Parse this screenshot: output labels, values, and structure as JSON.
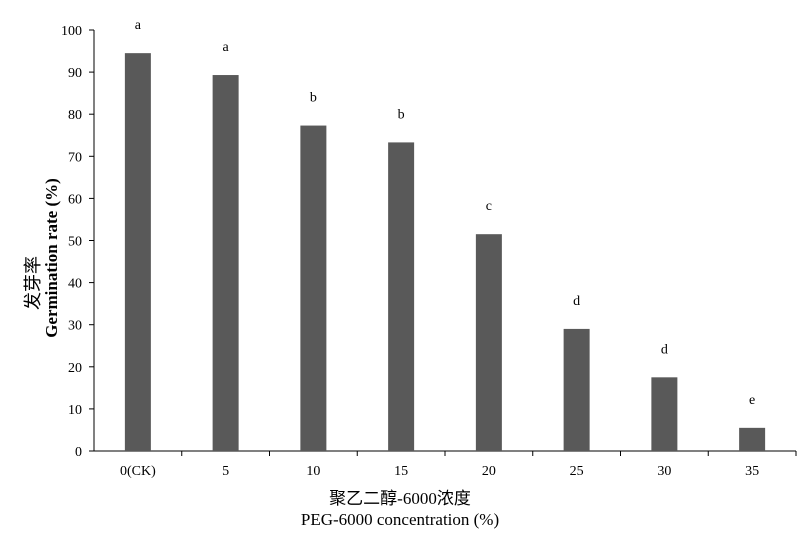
{
  "chart_data": {
    "type": "bar",
    "categories": [
      "0(CK)",
      "5",
      "10",
      "15",
      "20",
      "25",
      "30",
      "35"
    ],
    "values": [
      94.5,
      89.3,
      77.3,
      73.3,
      51.5,
      29.0,
      17.5,
      5.5
    ],
    "letters": [
      "a",
      "a",
      "b",
      "b",
      "c",
      "d",
      "d",
      "e"
    ],
    "ylim": [
      0,
      100
    ],
    "yticks": [
      0,
      10,
      20,
      30,
      40,
      50,
      60,
      70,
      80,
      90,
      100
    ],
    "xlabel_cn": "聚乙二醇-6000浓度",
    "xlabel_en": "PEG-6000 concentration (%)",
    "ylabel_cn": "发芽率",
    "ylabel_en": "Germination rate (%)",
    "bar_color": "#595959",
    "grid": false
  }
}
